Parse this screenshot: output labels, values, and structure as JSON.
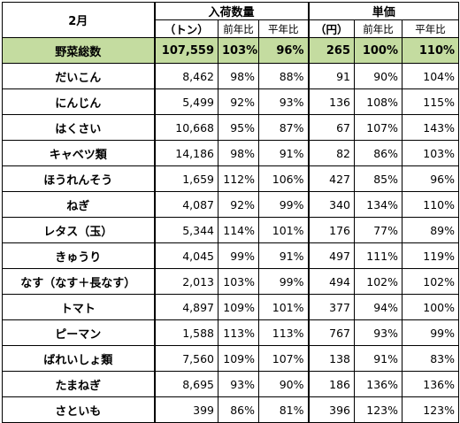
{
  "header": {
    "month": "2月",
    "volume_group": "入荷数量",
    "price_group": "単価",
    "volume_unit": "（トン）",
    "price_unit": "（円）",
    "yoy": "前年比",
    "normal": "平年比"
  },
  "total": {
    "name": "野菜総数",
    "volume": "107,559",
    "volume_yoy": "103%",
    "volume_normal": "96%",
    "price": "265",
    "price_yoy": "100%",
    "price_normal": "110%"
  },
  "rows": [
    {
      "name": "だいこん",
      "volume": "8,462",
      "volume_yoy": "98%",
      "volume_normal": "88%",
      "price": "91",
      "price_yoy": "90%",
      "price_normal": "104%"
    },
    {
      "name": "にんじん",
      "volume": "5,499",
      "volume_yoy": "92%",
      "volume_normal": "93%",
      "price": "136",
      "price_yoy": "108%",
      "price_normal": "115%"
    },
    {
      "name": "はくさい",
      "volume": "10,668",
      "volume_yoy": "95%",
      "volume_normal": "87%",
      "price": "67",
      "price_yoy": "107%",
      "price_normal": "143%"
    },
    {
      "name": "キャベツ類",
      "volume": "14,186",
      "volume_yoy": "98%",
      "volume_normal": "91%",
      "price": "82",
      "price_yoy": "86%",
      "price_normal": "103%"
    },
    {
      "name": "ほうれんそう",
      "volume": "1,659",
      "volume_yoy": "112%",
      "volume_normal": "106%",
      "price": "427",
      "price_yoy": "85%",
      "price_normal": "96%"
    },
    {
      "name": "ねぎ",
      "volume": "4,087",
      "volume_yoy": "92%",
      "volume_normal": "99%",
      "price": "340",
      "price_yoy": "134%",
      "price_normal": "110%"
    },
    {
      "name": "レタス（玉）",
      "volume": "5,344",
      "volume_yoy": "114%",
      "volume_normal": "101%",
      "price": "176",
      "price_yoy": "77%",
      "price_normal": "89%"
    },
    {
      "name": "きゅうり",
      "volume": "4,045",
      "volume_yoy": "99%",
      "volume_normal": "91%",
      "price": "497",
      "price_yoy": "111%",
      "price_normal": "119%"
    },
    {
      "name": "なす（なす＋長なす）",
      "volume": "2,013",
      "volume_yoy": "103%",
      "volume_normal": "99%",
      "price": "494",
      "price_yoy": "102%",
      "price_normal": "102%"
    },
    {
      "name": "トマト",
      "volume": "4,897",
      "volume_yoy": "109%",
      "volume_normal": "101%",
      "price": "377",
      "price_yoy": "94%",
      "price_normal": "100%"
    },
    {
      "name": "ピーマン",
      "volume": "1,588",
      "volume_yoy": "113%",
      "volume_normal": "113%",
      "price": "767",
      "price_yoy": "93%",
      "price_normal": "99%"
    },
    {
      "name": "ばれいしょ類",
      "volume": "7,560",
      "volume_yoy": "109%",
      "volume_normal": "107%",
      "price": "138",
      "price_yoy": "91%",
      "price_normal": "83%"
    },
    {
      "name": "たまねぎ",
      "volume": "8,695",
      "volume_yoy": "93%",
      "volume_normal": "90%",
      "price": "186",
      "price_yoy": "136%",
      "price_normal": "136%"
    },
    {
      "name": "さといも",
      "volume": "399",
      "volume_yoy": "86%",
      "volume_normal": "81%",
      "price": "396",
      "price_yoy": "123%",
      "price_normal": "123%"
    }
  ],
  "colors": {
    "total_row_bg": "#c4dca0"
  }
}
